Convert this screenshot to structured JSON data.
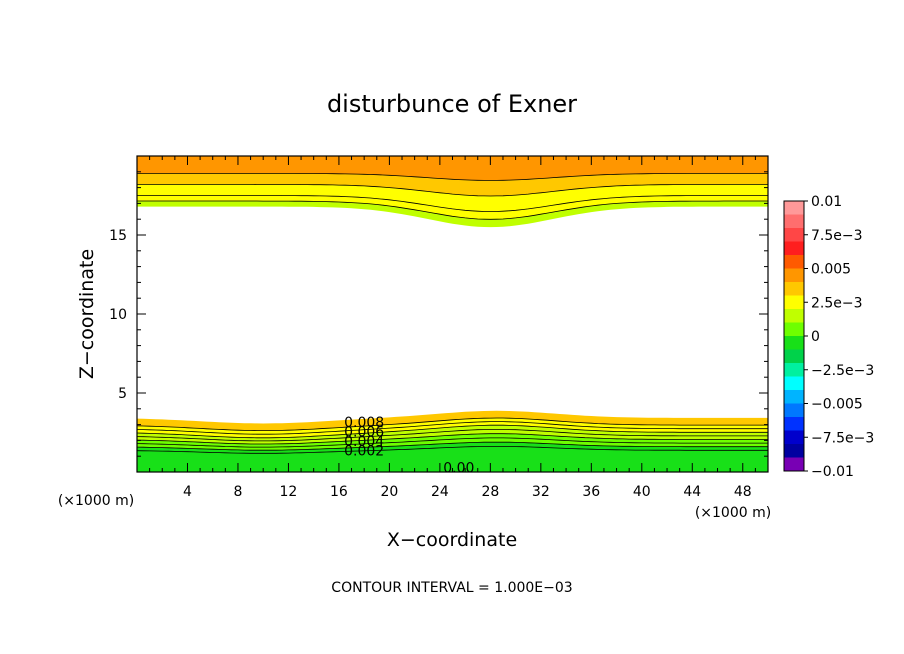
{
  "chart_data": {
    "type": "heatmap",
    "title": "disturbunce of Exner",
    "xlabel": "X−coordinate",
    "ylabel": "Z−coordinate",
    "x_unit": "(×1000 m)",
    "y_unit": "(×1000 m)",
    "footer": "CONTOUR INTERVAL = 1.000E−03",
    "xlim": [
      0,
      50
    ],
    "ylim": [
      0,
      20
    ],
    "x_ticks": [
      4,
      8,
      12,
      16,
      20,
      24,
      28,
      32,
      36,
      40,
      44,
      48
    ],
    "y_ticks": [
      5,
      10,
      15
    ],
    "colorbar": {
      "range": [
        -0.01,
        0.01
      ],
      "labels": [
        "0.01",
        "7.5e−3",
        "0.005",
        "2.5e−3",
        "0",
        "−2.5e−3",
        "−0.005",
        "−7.5e−3",
        "−0.01"
      ],
      "colors_top_to_bottom": [
        "#ff9999",
        "#ff6e6e",
        "#ff4646",
        "#ff1e1e",
        "#ff5a00",
        "#ff9600",
        "#ffc800",
        "#ffff00",
        "#c0ff00",
        "#6eff00",
        "#18e018",
        "#00d24a",
        "#00f0a0",
        "#00ffff",
        "#00b4ff",
        "#0078ff",
        "#0032ff",
        "#0000cc",
        "#0000a0",
        "#7800b4"
      ]
    },
    "contour_interval": 0.001,
    "contour_labels": [
      "0.008",
      "0.006",
      "0.004",
      "0.002",
      "0.00"
    ],
    "bottom_layer_levels": [
      0.004,
      0.003,
      0.0025,
      0.002,
      0.0015,
      0.001,
      0.0005,
      0.0,
      -0.0005
    ],
    "top_layer_levels": [
      0.005,
      0.004,
      0.003,
      0.0025,
      0.002
    ]
  }
}
